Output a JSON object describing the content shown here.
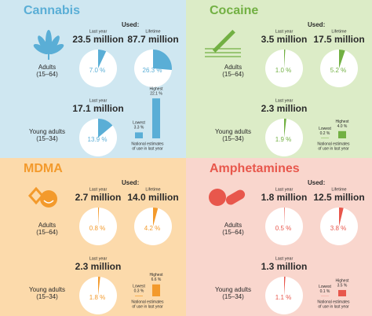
{
  "panels": [
    {
      "title": "Cannabis",
      "color": "#5aaed6",
      "background": "#cfe7f1",
      "used_label": "Used:",
      "adults": {
        "label": [
          "Adults",
          "(15–64)"
        ],
        "last_year": {
          "caption": "Last year",
          "amount": "23.5 million",
          "percent": {
            "value": 7.0,
            "label": "7.0 %"
          }
        },
        "lifetime": {
          "caption": "Lifetime",
          "amount": "87.7 million",
          "percent": {
            "value": 26.3,
            "label": "26.3 %"
          }
        }
      },
      "young_adults": {
        "label": [
          "Young adults",
          "(15–34)"
        ],
        "last_year": {
          "caption": "Last year",
          "amount": "17.1 million",
          "percent": {
            "value": 13.9,
            "label": "13.9 %"
          }
        },
        "range": {
          "lowest": {
            "caption": "Lowest",
            "value": 3.3,
            "label": "3.3 %"
          },
          "highest": {
            "caption": "Highest",
            "value": 22.1,
            "label": "22.1 %"
          },
          "note": [
            "National estimates",
            "of use in last year"
          ]
        }
      }
    },
    {
      "title": "Cocaine",
      "color": "#72b043",
      "background": "#dcecc7",
      "used_label": "Used:",
      "adults": {
        "label": [
          "Adults",
          "(15–64)"
        ],
        "last_year": {
          "caption": "Last year",
          "amount": "3.5 million",
          "percent": {
            "value": 1.0,
            "label": "1.0 %"
          }
        },
        "lifetime": {
          "caption": "Lifetime",
          "amount": "17.5 million",
          "percent": {
            "value": 5.2,
            "label": "5.2 %"
          }
        }
      },
      "young_adults": {
        "label": [
          "Young adults",
          "(15–34)"
        ],
        "last_year": {
          "caption": "Last year",
          "amount": "2.3 million",
          "percent": {
            "value": 1.9,
            "label": "1.9 %"
          }
        },
        "range": {
          "lowest": {
            "caption": "Lowest",
            "value": 0.2,
            "label": "0.2 %"
          },
          "highest": {
            "caption": "Highest",
            "value": 4.0,
            "label": "4.0 %"
          },
          "note": [
            "National estimates",
            "of use in last year"
          ]
        }
      }
    },
    {
      "title": "MDMA",
      "color": "#f39a2c",
      "background": "#fcdaab",
      "used_label": "Used:",
      "adults": {
        "label": [
          "Adults",
          "(15–64)"
        ],
        "last_year": {
          "caption": "Last year",
          "amount": "2.7 million",
          "percent": {
            "value": 0.8,
            "label": "0.8 %"
          }
        },
        "lifetime": {
          "caption": "Lifetime",
          "amount": "14.0 million",
          "percent": {
            "value": 4.2,
            "label": "4.2 %"
          }
        }
      },
      "young_adults": {
        "label": [
          "Young adults",
          "(15–34)"
        ],
        "last_year": {
          "caption": "Last year",
          "amount": "2.3 million",
          "percent": {
            "value": 1.8,
            "label": "1.8 %"
          }
        },
        "range": {
          "lowest": {
            "caption": "Lowest",
            "value": 0.3,
            "label": "0.3 %"
          },
          "highest": {
            "caption": "Highest",
            "value": 6.6,
            "label": "6.6 %"
          },
          "note": [
            "National estimates",
            "of use in last year"
          ]
        }
      }
    },
    {
      "title": "Amphetamines",
      "color": "#e8574c",
      "background": "#f9d6cd",
      "used_label": "Used:",
      "adults": {
        "label": [
          "Adults",
          "(15–64)"
        ],
        "last_year": {
          "caption": "Last year",
          "amount": "1.8 million",
          "percent": {
            "value": 0.5,
            "label": "0.5 %"
          }
        },
        "lifetime": {
          "caption": "Lifetime",
          "amount": "12.5 million",
          "percent": {
            "value": 3.8,
            "label": "3.8 %"
          }
        }
      },
      "young_adults": {
        "label": [
          "Young adults",
          "(15–34)"
        ],
        "last_year": {
          "caption": "Last year",
          "amount": "1.3 million",
          "percent": {
            "value": 1.1,
            "label": "1.1 %"
          }
        },
        "range": {
          "lowest": {
            "caption": "Lowest",
            "value": 0.1,
            "label": "0.1 %"
          },
          "highest": {
            "caption": "Highest",
            "value": 3.5,
            "label": "3.5 %"
          },
          "note": [
            "National estimates",
            "of use in last year"
          ]
        }
      }
    }
  ]
}
